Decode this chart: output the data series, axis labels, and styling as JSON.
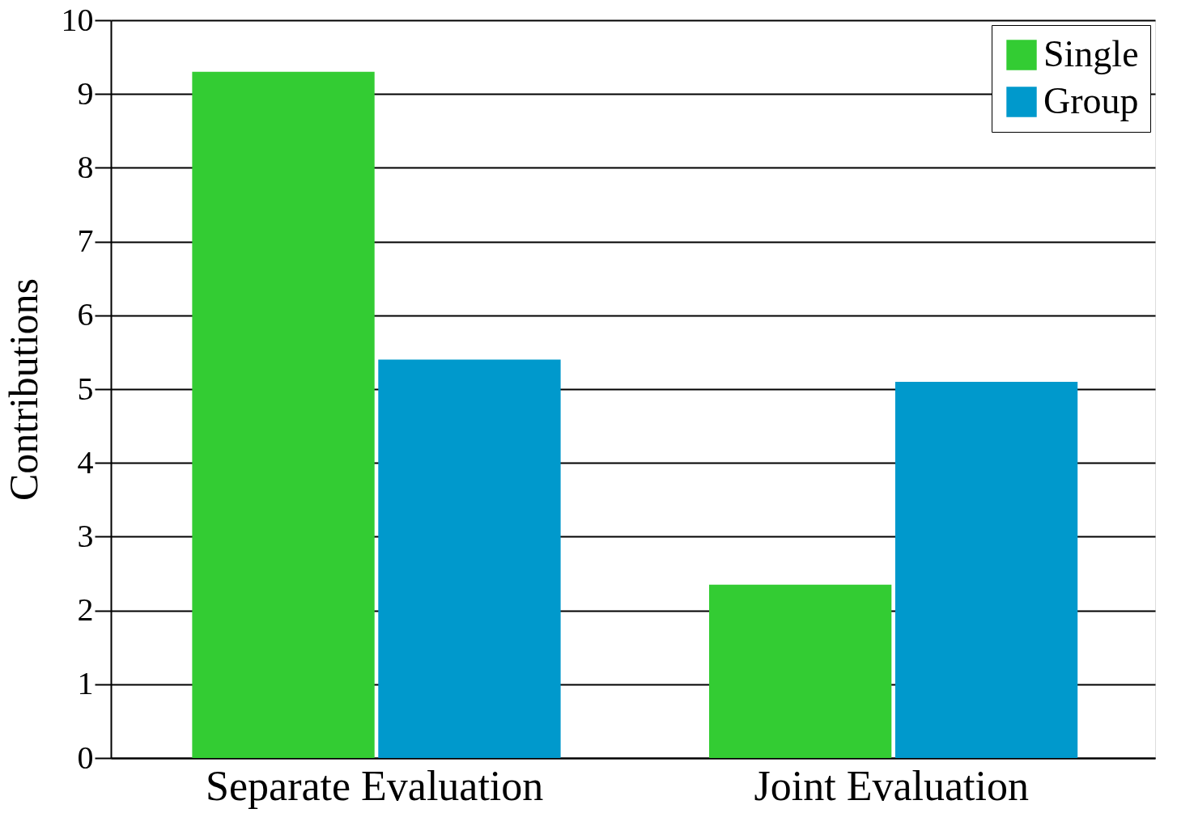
{
  "chart_data": {
    "type": "bar",
    "ylabel": "Contributions",
    "categories": [
      "Separate Evaluation",
      "Joint Evaluation"
    ],
    "series": [
      {
        "name": "Single",
        "color": "#33cc33",
        "values": [
          9.3,
          2.35
        ]
      },
      {
        "name": "Group",
        "color": "#0099cc",
        "values": [
          5.4,
          5.1
        ]
      }
    ],
    "ylim": [
      0,
      10
    ],
    "yticks": [
      0,
      1,
      2,
      3,
      4,
      5,
      6,
      7,
      8,
      9,
      10
    ],
    "grid": "y",
    "legend": "top right"
  }
}
